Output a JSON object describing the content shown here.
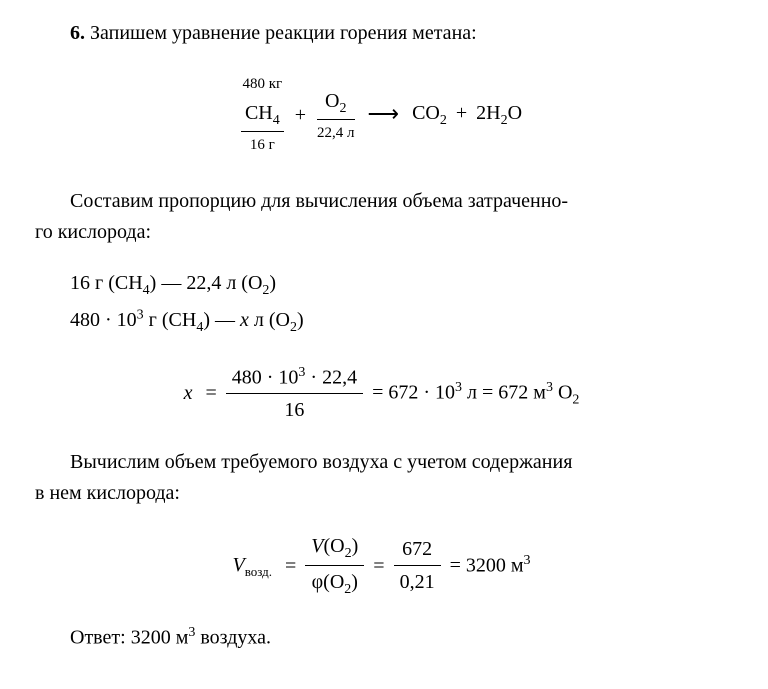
{
  "problem": {
    "number": "6.",
    "heading": "Запишем уравнение реакции горения метана:"
  },
  "equation": {
    "ch4_over": "480 кг",
    "ch4": "CH",
    "ch4_sub": "4",
    "ch4_under": "16 г",
    "plus": "+",
    "o2": "O",
    "o2_sub": "2",
    "o2_over": "",
    "o2_under": "22,4 л",
    "arrow": "⟶",
    "co2": "CO",
    "co2_sub": "2",
    "plus2": "+",
    "h2o_coef": "2",
    "h2o": "H",
    "h2o_sub": "2",
    "h2o_o": "O"
  },
  "para1": {
    "line1": "Составим пропорцию для вычисления объема затраченно-",
    "line2": "го кислорода:"
  },
  "proportion": {
    "line1_a": "16 г (CH",
    "line1_b": ") — 22,4 л (O",
    "line1_c": ")",
    "line2_a": "480 · 10",
    "line2_b": " г (CH",
    "line2_c": ") — ",
    "line2_x": "x",
    "line2_d": " л (O",
    "line2_e": ")",
    "sub4": "4",
    "sub2": "2",
    "sup3": "3"
  },
  "calc1": {
    "x": "x",
    "eq": "=",
    "num": "480 · 10",
    "num_sup": "3",
    "num_b": " · 22,4",
    "den": "16",
    "res1": "= 672 · 10",
    "res1_sup": "3",
    "res1_b": " л = 672 м",
    "res1_sup2": "3",
    "res1_c": " O",
    "res1_sub": "2"
  },
  "para2": {
    "line1": "Вычислим объем требуемого воздуха с учетом содержания",
    "line2": "в нем кислорода:"
  },
  "calc2": {
    "V": "V",
    "vozd": "возд.",
    "eq": "=",
    "num_V": "V",
    "num_o2": "(O",
    "num_sub": "2",
    "num_close": ")",
    "den_phi": "φ",
    "den_o2": "(O",
    "den_sub": "2",
    "den_close": ")",
    "num2": "672",
    "den2": "0,21",
    "res": "= 3200 м",
    "res_sup": "3"
  },
  "answer": {
    "label": "Ответ:",
    "text": " 3200 м",
    "sup": "3",
    "text2": " воздуха."
  }
}
